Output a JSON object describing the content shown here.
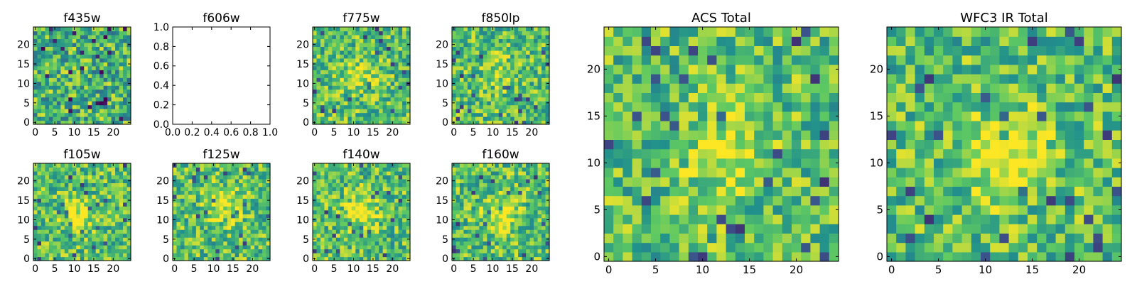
{
  "colormap": [
    "#440154",
    "#3b528b",
    "#21918c",
    "#5ec962",
    "#fde725"
  ],
  "chart_data": [
    {
      "type": "heatmap",
      "title": "f435w",
      "xticks": [
        "0",
        "5",
        "10",
        "15",
        "20"
      ],
      "yticks": [
        "0",
        "5",
        "10",
        "15",
        "20"
      ],
      "xlim": [
        -0.5,
        24.5
      ],
      "ylim": [
        -0.5,
        24.5
      ],
      "grid": false,
      "note": "per-pixel values not readable; noise field"
    },
    {
      "type": "empty",
      "title": "f606w",
      "xticks": [
        "0.0",
        "0.2",
        "0.4",
        "0.6",
        "0.8",
        "1.0"
      ],
      "yticks": [
        "0.0",
        "0.2",
        "0.4",
        "0.6",
        "0.8",
        "1.0"
      ],
      "xlim": [
        0,
        1
      ],
      "ylim": [
        0,
        1
      ],
      "grid": false
    },
    {
      "type": "heatmap",
      "title": "f775w",
      "xticks": [
        "0",
        "5",
        "10",
        "15",
        "20"
      ],
      "yticks": [
        "0",
        "5",
        "10",
        "15",
        "20"
      ],
      "xlim": [
        -0.5,
        24.5
      ],
      "ylim": [
        -0.5,
        24.5
      ],
      "grid": false,
      "blob": {
        "cx": 12,
        "cy": 12,
        "amplitude": 0.25
      }
    },
    {
      "type": "heatmap",
      "title": "f850lp",
      "xticks": [
        "0",
        "5",
        "10",
        "15",
        "20"
      ],
      "yticks": [
        "0",
        "5",
        "10",
        "15",
        "20"
      ],
      "xlim": [
        -0.5,
        24.5
      ],
      "ylim": [
        -0.5,
        24.5
      ],
      "grid": false,
      "blob": {
        "cx": 12,
        "cy": 13,
        "amplitude": 0.2
      }
    },
    {
      "type": "heatmap",
      "title": "f105w",
      "xticks": [
        "0",
        "5",
        "10",
        "15",
        "20"
      ],
      "yticks": [
        "0",
        "5",
        "10",
        "15",
        "20"
      ],
      "xlim": [
        -0.5,
        24.5
      ],
      "ylim": [
        -0.5,
        24.5
      ],
      "grid": false,
      "blob": {
        "cx": 11,
        "cy": 11,
        "amplitude": 0.35
      }
    },
    {
      "type": "heatmap",
      "title": "f125w",
      "xticks": [
        "0",
        "5",
        "10",
        "15",
        "20"
      ],
      "yticks": [
        "0",
        "5",
        "10",
        "15",
        "20"
      ],
      "xlim": [
        -0.5,
        24.5
      ],
      "ylim": [
        -0.5,
        24.5
      ],
      "grid": false,
      "blob": {
        "cx": 13,
        "cy": 14,
        "amplitude": 0.3
      }
    },
    {
      "type": "heatmap",
      "title": "f140w",
      "xticks": [
        "0",
        "5",
        "10",
        "15",
        "20"
      ],
      "yticks": [
        "0",
        "5",
        "10",
        "15",
        "20"
      ],
      "xlim": [
        -0.5,
        24.5
      ],
      "ylim": [
        -0.5,
        24.5
      ],
      "grid": false,
      "blob": {
        "cx": 12,
        "cy": 12,
        "amplitude": 0.35
      }
    },
    {
      "type": "heatmap",
      "title": "f160w",
      "xticks": [
        "0",
        "5",
        "10",
        "15",
        "20"
      ],
      "yticks": [
        "0",
        "5",
        "10",
        "15",
        "20"
      ],
      "xlim": [
        -0.5,
        24.5
      ],
      "ylim": [
        -0.5,
        24.5
      ],
      "grid": false,
      "blob": {
        "cx": 12,
        "cy": 11,
        "amplitude": 0.4
      }
    },
    {
      "type": "heatmap",
      "title": "ACS Total",
      "xticks": [
        "0",
        "5",
        "10",
        "15",
        "20"
      ],
      "yticks": [
        "0",
        "5",
        "10",
        "15",
        "20"
      ],
      "xlim": [
        -0.5,
        24.5
      ],
      "ylim": [
        -0.5,
        24.5
      ],
      "grid": false,
      "blob": {
        "cx": 12,
        "cy": 11,
        "amplitude": 0.3
      }
    },
    {
      "type": "heatmap",
      "title": "WFC3 IR Total",
      "xticks": [
        "0",
        "5",
        "10",
        "15",
        "20"
      ],
      "yticks": [
        "0",
        "5",
        "10",
        "15",
        "20"
      ],
      "xlim": [
        -0.5,
        24.5
      ],
      "ylim": [
        -0.5,
        24.5
      ],
      "grid": false,
      "blob": {
        "cx": 12,
        "cy": 11,
        "amplitude": 0.45
      }
    }
  ]
}
